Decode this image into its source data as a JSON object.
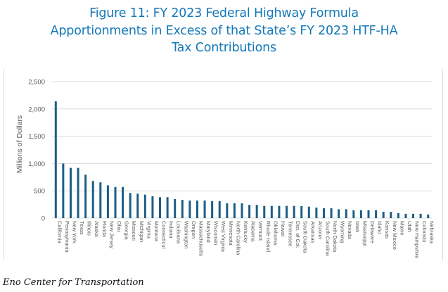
{
  "figure": {
    "title_lines": [
      "Figure 11: FY 2023 Federal Highway Formula",
      "Apportionments in Excess of that State’s FY 2023 HTF-HA",
      "Tax Contributions"
    ],
    "caption": "Eno Center for Transportation"
  },
  "colors": {
    "title": "#1478b8",
    "bar": "#1b5e86",
    "grid": "#d9d9d9",
    "axis_text": "#595959"
  },
  "chart_data": {
    "type": "bar",
    "title": "Figure 11: FY 2023 Federal Highway Formula Apportionments in Excess of that State’s FY 2023 HTF-HA Tax Contributions",
    "xlabel": "",
    "ylabel": "Millions of Dollars",
    "ylim": [
      0,
      2500
    ],
    "yticks": [
      0,
      500,
      1000,
      1500,
      2000,
      2500
    ],
    "ytick_labels": [
      "0",
      "500",
      "1,000",
      "1,500",
      "2,000",
      "2,500"
    ],
    "grid": true,
    "legend": "none",
    "categories": [
      "California",
      "Pennsylvania",
      "New York",
      "Texas",
      "Illinois",
      "Alaska",
      "Florida",
      "New Jersey",
      "Ohio",
      "Georgia",
      "Missouri",
      "Michigan",
      "Virginia",
      "Montana",
      "Connecticut",
      "Indiana",
      "Louisiana",
      "Washington",
      "Oregon",
      "Massachusetts",
      "Maryland",
      "Wisconsin",
      "West Virginia",
      "Minnesota",
      "North Carolina",
      "Kentucky",
      "Alabama",
      "Vermont",
      "Rhode Island",
      "Oklahoma",
      "Hawaii",
      "Tennessee",
      "Dist. of Col.",
      "South Dakota",
      "Arkansas",
      "Arizona",
      "South Carolina",
      "North Dakota",
      "Wyoming",
      "Nevada",
      "Iowa",
      "Mississippi",
      "Delaware",
      "Idaho",
      "Kansas",
      "New Mexico",
      "Maine",
      "Utah",
      "New Hampshire",
      "Colorado",
      "Nebraska"
    ],
    "values": [
      2140,
      1000,
      920,
      920,
      795,
      680,
      655,
      600,
      570,
      570,
      460,
      447,
      430,
      400,
      383,
      383,
      348,
      335,
      322,
      322,
      322,
      312,
      312,
      272,
      272,
      272,
      242,
      242,
      224,
      224,
      224,
      224,
      224,
      220,
      210,
      193,
      180,
      180,
      163,
      163,
      145,
      145,
      145,
      145,
      115,
      115,
      92,
      79,
      79,
      79,
      66
    ]
  }
}
